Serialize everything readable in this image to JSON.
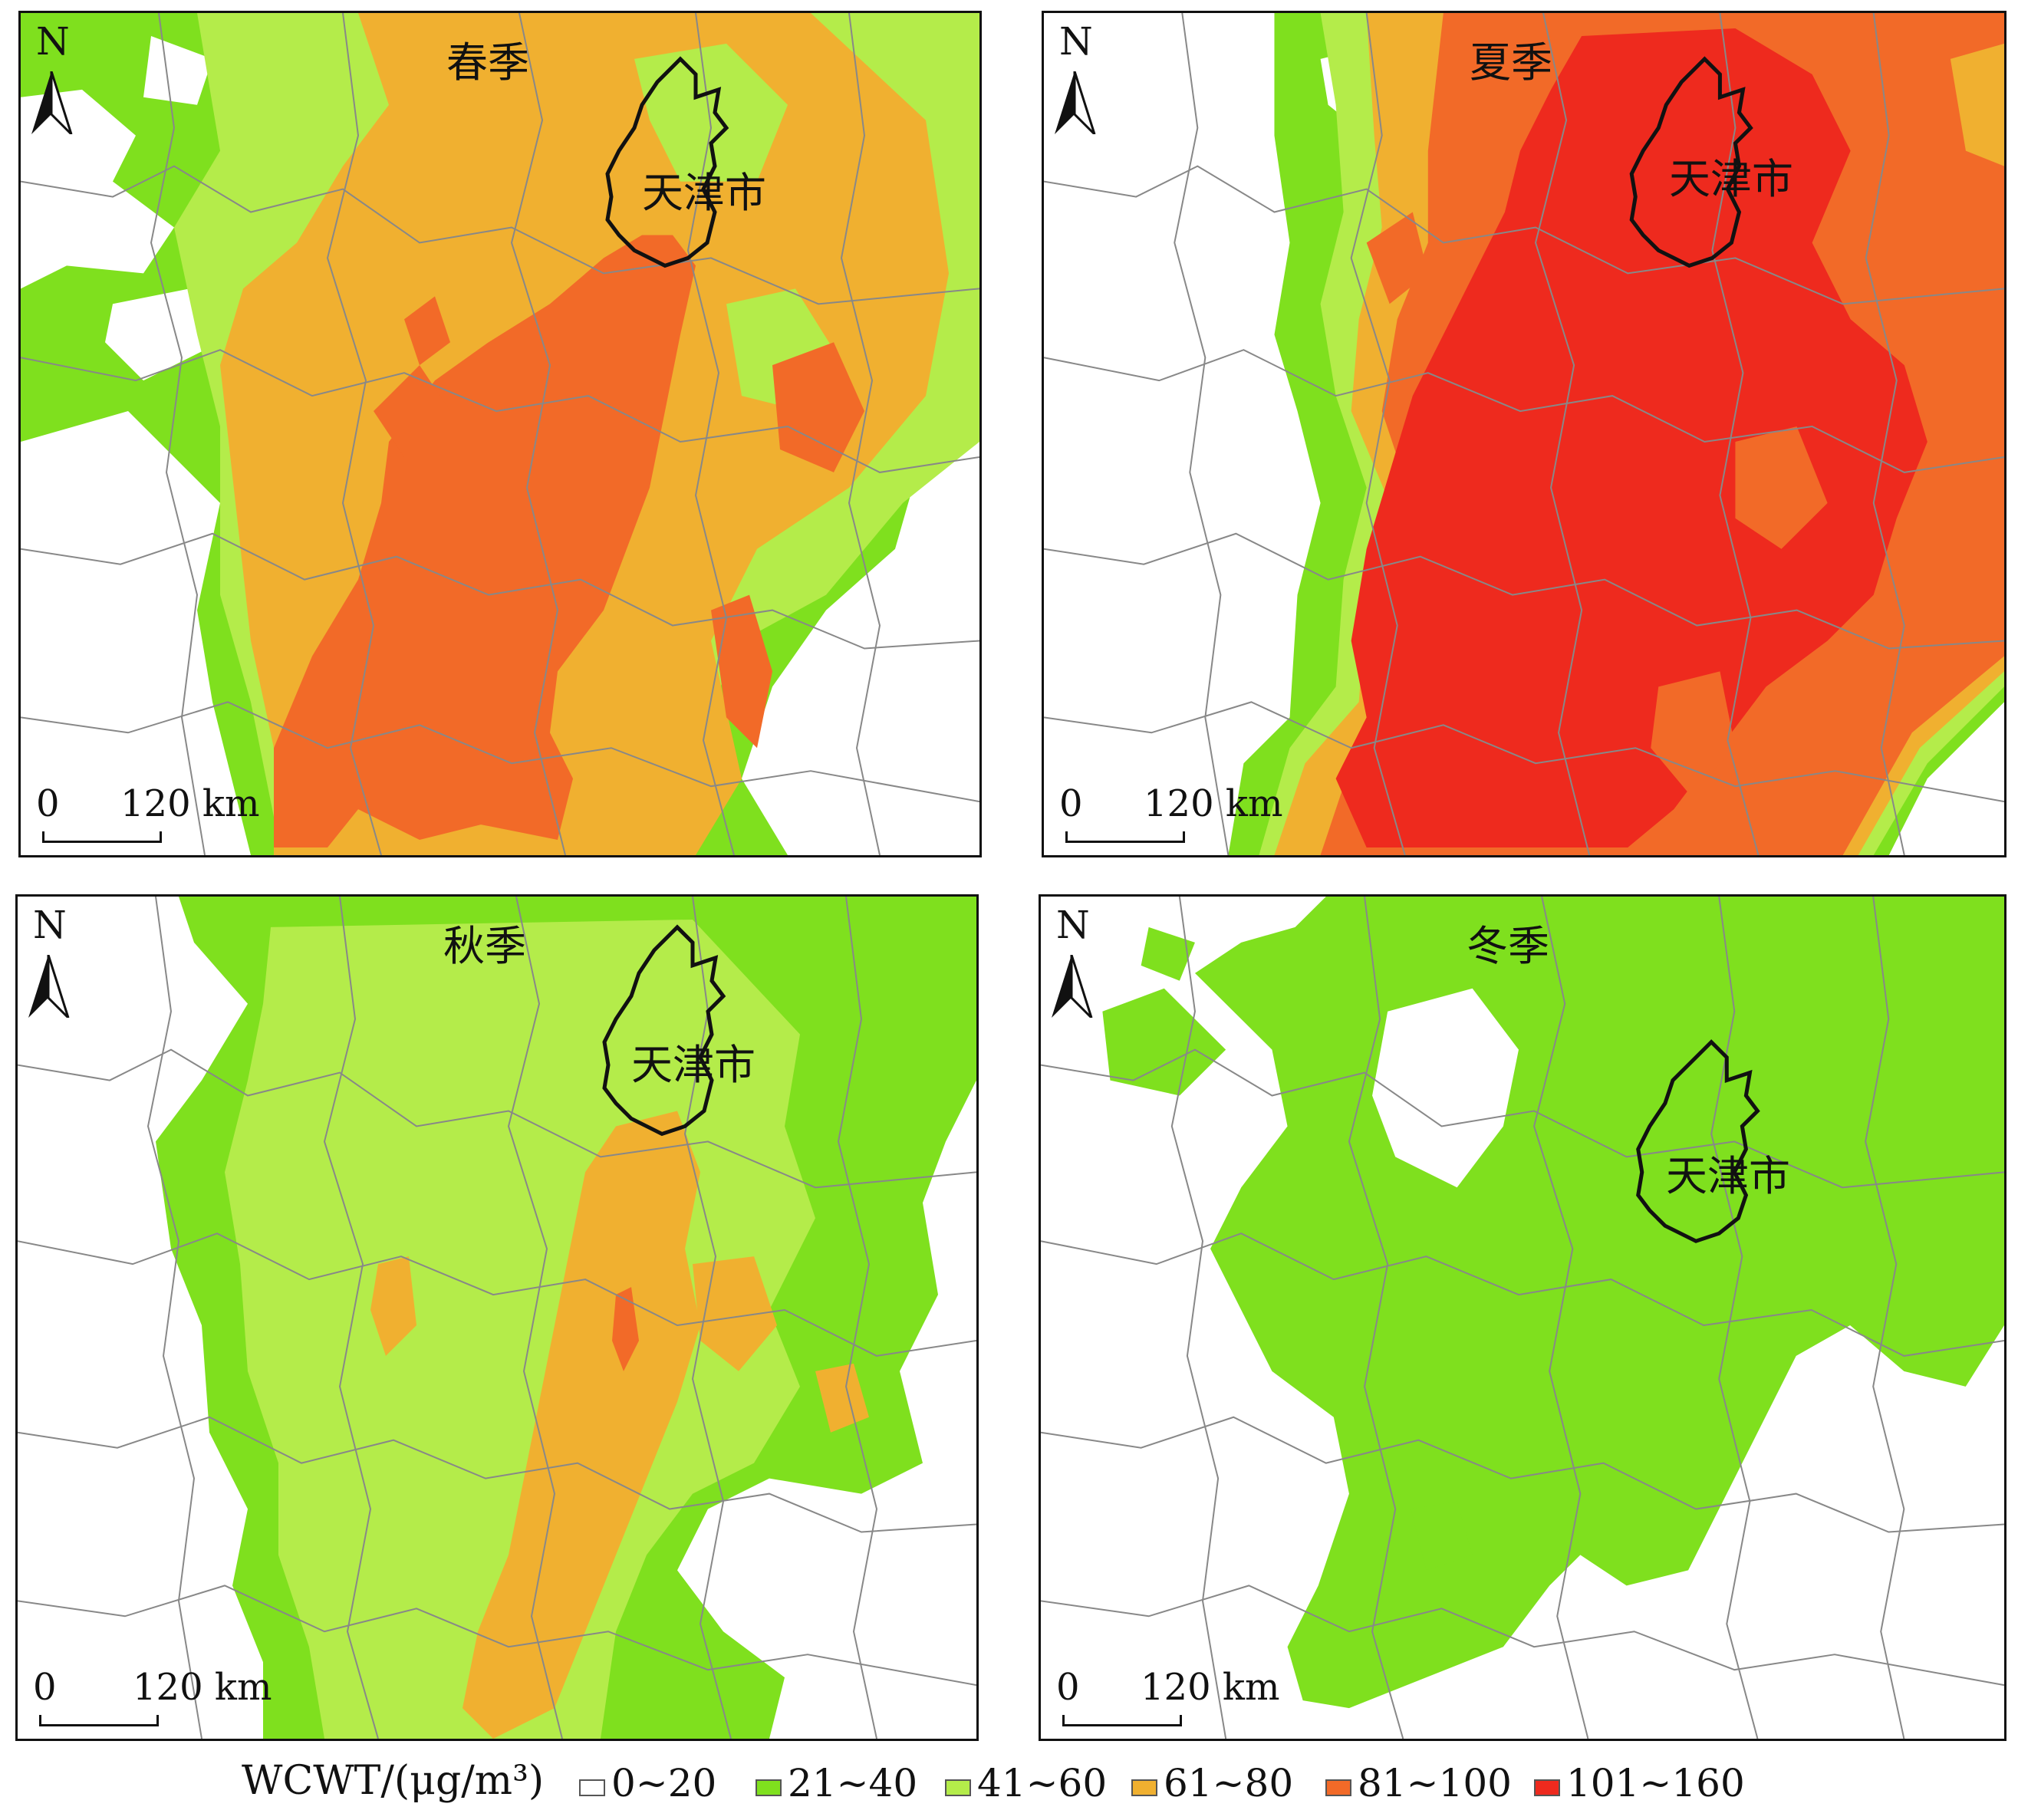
{
  "panels": [
    {
      "title": "春季",
      "city": "天津市",
      "north": "N",
      "scale_zero": "0",
      "scale_dist": "120 km"
    },
    {
      "title": "夏季",
      "city": "天津市",
      "north": "N",
      "scale_zero": "0",
      "scale_dist": "120 km"
    },
    {
      "title": "秋季",
      "city": "天津市",
      "north": "N",
      "scale_zero": "0",
      "scale_dist": "120 km"
    },
    {
      "title": "冬季",
      "city": "天津市",
      "north": "N",
      "scale_zero": "0",
      "scale_dist": "120 km"
    }
  ],
  "legend": {
    "title": "WCWT/(μg/m³)",
    "items": [
      {
        "label": "0~20",
        "color": "#ffffff"
      },
      {
        "label": "21~40",
        "color": "#7fe01e"
      },
      {
        "label": "41~60",
        "color": "#b4ec4a"
      },
      {
        "label": "61~80",
        "color": "#f0b030"
      },
      {
        "label": "81~100",
        "color": "#f26a28"
      },
      {
        "label": "101~160",
        "color": "#ee2a1e"
      }
    ]
  },
  "colors": {
    "c0": "#ffffff",
    "c1": "#7fe01e",
    "c2": "#b4ec4a",
    "c3": "#f0b030",
    "c4": "#f26a28",
    "c5": "#ee2a1e",
    "border": "#888888",
    "outline": "#111111"
  }
}
